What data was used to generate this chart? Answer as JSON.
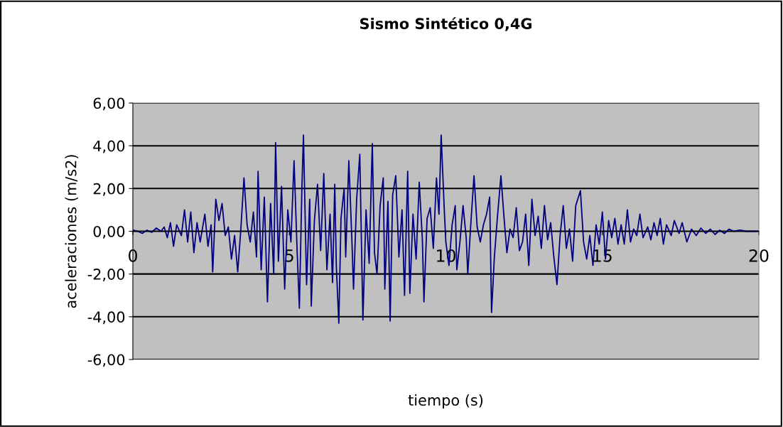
{
  "chart_data": {
    "type": "line",
    "title": "Sismo Sintético 0,4G",
    "xlabel": "tiempo (s)",
    "ylabel": "aceleraciones (m/s2)",
    "xlim": [
      0,
      20
    ],
    "xticks": [
      0,
      5,
      10,
      15,
      20
    ],
    "ylim": [
      -6,
      6
    ],
    "yticks": [
      {
        "value": -6,
        "label": "-6,00"
      },
      {
        "value": -4,
        "label": "-4,00"
      },
      {
        "value": -2,
        "label": "-2,00"
      },
      {
        "value": 0,
        "label": "0,00"
      },
      {
        "value": 2,
        "label": "2,00"
      },
      {
        "value": 4,
        "label": "4,00"
      },
      {
        "value": 6,
        "label": "6,00"
      }
    ],
    "grid": "y",
    "legend": false,
    "marker": "none",
    "line_style": "solid",
    "series": [
      {
        "color": "#000080",
        "x": [
          0.0,
          0.15,
          0.3,
          0.45,
          0.6,
          0.75,
          0.9,
          1.0,
          1.1,
          1.2,
          1.3,
          1.4,
          1.55,
          1.65,
          1.75,
          1.85,
          1.95,
          2.05,
          2.15,
          2.3,
          2.4,
          2.5,
          2.55,
          2.65,
          2.75,
          2.85,
          2.95,
          3.05,
          3.15,
          3.25,
          3.35,
          3.45,
          3.55,
          3.65,
          3.75,
          3.85,
          3.95,
          4.0,
          4.1,
          4.2,
          4.3,
          4.4,
          4.5,
          4.56,
          4.65,
          4.75,
          4.85,
          4.95,
          5.05,
          5.15,
          5.25,
          5.32,
          5.4,
          5.45,
          5.55,
          5.65,
          5.7,
          5.8,
          5.9,
          6.0,
          6.1,
          6.2,
          6.3,
          6.38,
          6.45,
          6.5,
          6.58,
          6.65,
          6.75,
          6.8,
          6.9,
          7.0,
          7.05,
          7.15,
          7.25,
          7.35,
          7.45,
          7.55,
          7.65,
          7.72,
          7.8,
          7.9,
          8.0,
          8.05,
          8.15,
          8.22,
          8.3,
          8.4,
          8.5,
          8.6,
          8.68,
          8.78,
          8.85,
          8.95,
          9.05,
          9.15,
          9.25,
          9.3,
          9.4,
          9.5,
          9.6,
          9.7,
          9.78,
          9.85,
          9.95,
          10.0,
          10.1,
          10.2,
          10.3,
          10.35,
          10.45,
          10.55,
          10.65,
          10.7,
          10.8,
          10.9,
          11.0,
          11.1,
          11.2,
          11.3,
          11.4,
          11.46,
          11.55,
          11.65,
          11.76,
          11.85,
          11.95,
          12.05,
          12.15,
          12.25,
          12.35,
          12.45,
          12.55,
          12.65,
          12.75,
          12.85,
          12.95,
          13.05,
          13.15,
          13.25,
          13.35,
          13.45,
          13.55,
          13.65,
          13.75,
          13.85,
          13.95,
          14.05,
          14.15,
          14.3,
          14.4,
          14.5,
          14.6,
          14.7,
          14.8,
          14.9,
          15.0,
          15.1,
          15.2,
          15.3,
          15.4,
          15.5,
          15.6,
          15.7,
          15.8,
          15.9,
          16.0,
          16.1,
          16.2,
          16.3,
          16.45,
          16.55,
          16.65,
          16.75,
          16.85,
          16.95,
          17.05,
          17.2,
          17.3,
          17.45,
          17.55,
          17.7,
          17.85,
          18.0,
          18.15,
          18.3,
          18.45,
          18.6,
          18.75,
          18.9,
          19.05,
          19.2,
          19.4,
          19.6,
          20.0
        ],
        "values": [
          0.05,
          0.0,
          -0.1,
          0.05,
          -0.05,
          0.15,
          0.0,
          0.2,
          -0.3,
          0.4,
          -0.7,
          0.3,
          -0.2,
          1.0,
          -0.5,
          0.9,
          -1.0,
          0.4,
          -0.5,
          0.8,
          -0.7,
          0.3,
          -1.9,
          1.5,
          0.5,
          1.3,
          -0.2,
          0.2,
          -1.3,
          -0.2,
          -1.9,
          0.1,
          2.5,
          0.3,
          -0.5,
          0.9,
          -1.2,
          2.8,
          -1.8,
          1.6,
          -3.3,
          1.3,
          -2.0,
          4.15,
          -1.4,
          2.1,
          -2.7,
          1.0,
          -0.5,
          3.3,
          -1.0,
          -3.6,
          2.0,
          4.5,
          -2.5,
          1.5,
          -3.5,
          0.5,
          2.2,
          -0.9,
          2.7,
          -1.8,
          0.8,
          -2.4,
          2.2,
          -1.6,
          -4.3,
          0.6,
          2.0,
          -1.2,
          3.3,
          -0.5,
          -2.7,
          1.5,
          3.6,
          -4.15,
          1.0,
          -1.5,
          4.1,
          -1.0,
          -2.0,
          1.2,
          2.5,
          -2.7,
          1.4,
          -4.2,
          1.7,
          2.6,
          -1.2,
          1.0,
          -3.0,
          2.8,
          -2.9,
          0.8,
          -1.3,
          2.3,
          -0.4,
          -3.3,
          0.6,
          1.1,
          -0.8,
          2.5,
          0.8,
          4.5,
          1.0,
          -0.5,
          -1.6,
          0.3,
          1.2,
          -1.8,
          -0.5,
          1.2,
          -0.3,
          -2.0,
          0.4,
          2.6,
          0.2,
          -0.5,
          0.3,
          0.8,
          1.6,
          -3.8,
          -1.2,
          0.7,
          2.6,
          0.8,
          -1.0,
          0.1,
          -0.3,
          1.1,
          -0.9,
          -0.5,
          0.8,
          -1.6,
          1.5,
          -0.2,
          0.7,
          -0.8,
          1.2,
          -0.4,
          0.4,
          -1.2,
          -2.5,
          -0.2,
          1.2,
          -0.8,
          0.1,
          -1.4,
          1.2,
          1.9,
          -0.5,
          -1.3,
          -0.2,
          -1.6,
          0.3,
          -0.6,
          0.9,
          -1.3,
          0.5,
          -0.3,
          0.6,
          -0.6,
          0.3,
          -0.6,
          1.0,
          -0.5,
          0.1,
          -0.2,
          0.8,
          -0.3,
          0.2,
          -0.4,
          0.4,
          -0.2,
          0.6,
          -0.6,
          0.3,
          -0.2,
          0.5,
          -0.1,
          0.4,
          -0.5,
          0.1,
          -0.2,
          0.15,
          -0.1,
          0.1,
          -0.15,
          0.05,
          -0.1,
          0.1,
          0.0,
          0.05,
          0.0,
          0.0
        ]
      }
    ]
  }
}
